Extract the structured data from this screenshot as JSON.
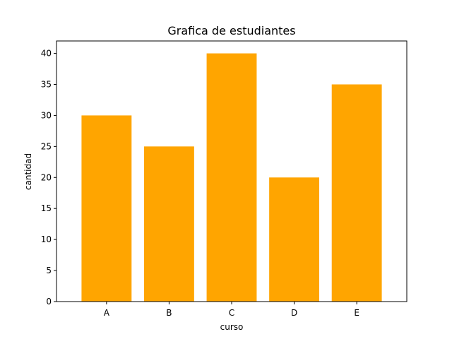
{
  "chart_data": {
    "type": "bar",
    "title": "Grafica de estudiantes",
    "xlabel": "curso",
    "ylabel": "cantidad",
    "categories": [
      "A",
      "B",
      "C",
      "D",
      "E"
    ],
    "values": [
      30,
      25,
      40,
      20,
      35
    ],
    "ylim": [
      0,
      42
    ],
    "yticks": [
      0,
      5,
      10,
      15,
      20,
      25,
      30,
      35,
      40
    ],
    "grid": false,
    "colors": {
      "bar": "#FFA500",
      "axis": "#000000"
    }
  }
}
